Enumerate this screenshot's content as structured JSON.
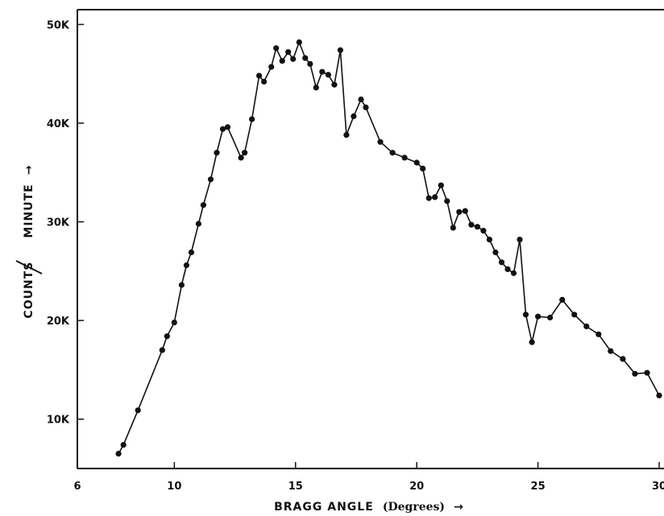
{
  "chart_data": {
    "type": "line",
    "xlabel_main": "BRAGG ANGLE",
    "xlabel_unit": "(Degrees)",
    "xlabel_arrow": "→",
    "ylabel_left": "COUNTS",
    "ylabel_right": "MINUTE",
    "ylabel_arrow": "→",
    "xlim": [
      6,
      30
    ],
    "ylim": [
      5000,
      51500
    ],
    "x_ticks": [
      6,
      10,
      15,
      20,
      25,
      30
    ],
    "x_tick_labels": [
      "6",
      "10",
      "15",
      "20",
      "25",
      "30"
    ],
    "y_ticks": [
      10000,
      20000,
      30000,
      40000,
      50000
    ],
    "y_tick_labels": [
      "10K",
      "20K",
      "30K",
      "40K",
      "50K"
    ],
    "grid": false,
    "series": [
      {
        "points": [
          [
            7.7,
            6500
          ],
          [
            7.9,
            7400
          ],
          [
            8.5,
            10900
          ],
          [
            9.5,
            17000
          ],
          [
            9.7,
            18400
          ],
          [
            10.0,
            19800
          ],
          [
            10.3,
            23600
          ],
          [
            10.5,
            25600
          ],
          [
            10.7,
            26900
          ],
          [
            11.0,
            29800
          ],
          [
            11.2,
            31700
          ],
          [
            11.5,
            34300
          ],
          [
            11.75,
            37000
          ],
          [
            12.0,
            39400
          ],
          [
            12.2,
            39600
          ],
          [
            12.75,
            36500
          ],
          [
            12.9,
            37000
          ],
          [
            13.2,
            40400
          ],
          [
            13.5,
            44800
          ],
          [
            13.7,
            44200
          ],
          [
            14.0,
            45700
          ],
          [
            14.2,
            47600
          ],
          [
            14.45,
            46300
          ],
          [
            14.7,
            47200
          ],
          [
            14.9,
            46500
          ],
          [
            15.15,
            48200
          ],
          [
            15.4,
            46600
          ],
          [
            15.6,
            46000
          ],
          [
            15.85,
            43600
          ],
          [
            16.1,
            45200
          ],
          [
            16.35,
            44900
          ],
          [
            16.6,
            43900
          ],
          [
            16.85,
            47400
          ],
          [
            17.1,
            38800
          ],
          [
            17.4,
            40700
          ],
          [
            17.7,
            42400
          ],
          [
            17.9,
            41600
          ],
          [
            18.5,
            38100
          ],
          [
            19.0,
            37000
          ],
          [
            19.5,
            36500
          ],
          [
            20.0,
            36000
          ],
          [
            20.25,
            35400
          ],
          [
            20.5,
            32400
          ],
          [
            20.75,
            32500
          ],
          [
            21.0,
            33700
          ],
          [
            21.25,
            32100
          ],
          [
            21.5,
            29400
          ],
          [
            21.75,
            31000
          ],
          [
            22.0,
            31100
          ],
          [
            22.25,
            29700
          ],
          [
            22.5,
            29500
          ],
          [
            22.75,
            29100
          ],
          [
            23.0,
            28200
          ],
          [
            23.25,
            26900
          ],
          [
            23.5,
            25900
          ],
          [
            23.75,
            25200
          ],
          [
            24.0,
            24800
          ],
          [
            24.25,
            28200
          ],
          [
            24.5,
            20600
          ],
          [
            24.75,
            17800
          ],
          [
            25.0,
            20400
          ],
          [
            25.5,
            20300
          ],
          [
            26.0,
            22100
          ],
          [
            26.5,
            20600
          ],
          [
            27.0,
            19400
          ],
          [
            27.5,
            18600
          ],
          [
            28.0,
            16900
          ],
          [
            28.5,
            16100
          ],
          [
            29.0,
            14600
          ],
          [
            29.5,
            14700
          ],
          [
            30.0,
            12400
          ]
        ]
      }
    ]
  }
}
